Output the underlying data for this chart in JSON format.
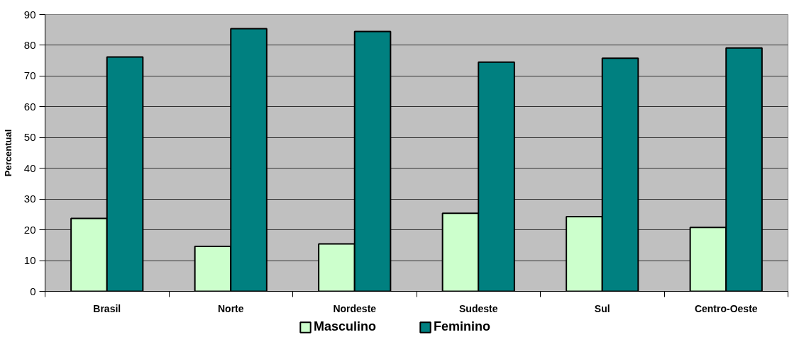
{
  "chart_data": {
    "type": "bar",
    "ylabel": "Percentual",
    "categories": [
      "Brasil",
      "Norte",
      "Nordeste",
      "Sudeste",
      "Sul",
      "Centro-Oeste"
    ],
    "series": [
      {
        "name": "Masculino",
        "color": "#ccffcc",
        "values": [
          23.7,
          14.6,
          15.4,
          25.4,
          24.3,
          20.8
        ]
      },
      {
        "name": "Feminino",
        "color": "#008080",
        "values": [
          76.2,
          85.4,
          84.5,
          74.5,
          75.8,
          79.1
        ]
      }
    ],
    "ylim": [
      0,
      90
    ],
    "yticks": [
      0,
      10,
      20,
      30,
      40,
      50,
      60,
      70,
      80,
      90
    ],
    "grid": "y",
    "legend": "bottom"
  }
}
